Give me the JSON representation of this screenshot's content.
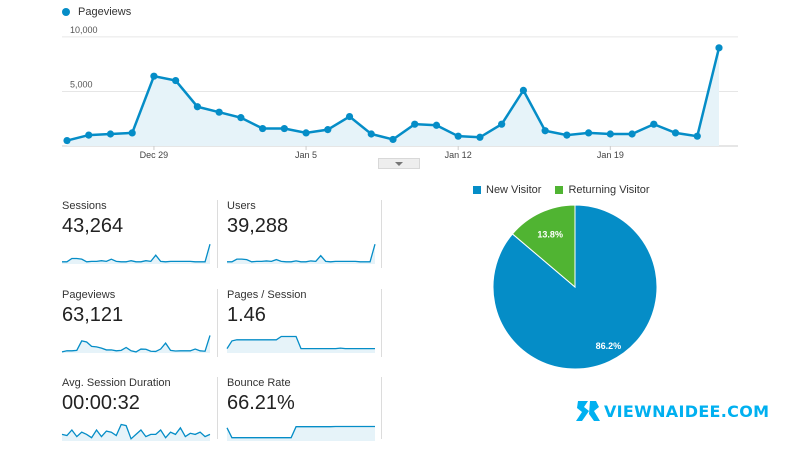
{
  "main_chart": {
    "legend_label": "Pageviews",
    "color": "#058dc7",
    "y_ticks": [
      "10,000",
      "5,000"
    ],
    "x_ticks": [
      "Dec 29",
      "Jan 5",
      "Jan 12",
      "Jan 19"
    ]
  },
  "chart_data": [
    {
      "type": "area",
      "series": [
        {
          "name": "Pageviews",
          "values": [
            500,
            1000,
            1100,
            1200,
            6400,
            6000,
            3600,
            3100,
            2600,
            1600,
            1600,
            1200,
            1500,
            2700,
            1100,
            600,
            2000,
            1900,
            900,
            800,
            2000,
            5100,
            1400,
            1000,
            1200,
            1100,
            1100,
            2000,
            1200,
            900,
            9000
          ]
        }
      ],
      "x": [
        "Dec 25",
        "Dec 26",
        "Dec 27",
        "Dec 28",
        "Dec 29",
        "Dec 30",
        "Dec 31",
        "Jan 1",
        "Jan 2",
        "Jan 3",
        "Jan 4",
        "Jan 5",
        "Jan 6",
        "Jan 7",
        "Jan 8",
        "Jan 9",
        "Jan 10",
        "Jan 11",
        "Jan 12",
        "Jan 13",
        "Jan 14",
        "Jan 15",
        "Jan 16",
        "Jan 17",
        "Jan 18",
        "Jan 19",
        "Jan 20",
        "Jan 21",
        "Jan 22",
        "Jan 23",
        "Jan 24"
      ],
      "ylim": [
        0,
        11000
      ],
      "xlabel": "",
      "ylabel": "",
      "grid": true,
      "legend": "top-left"
    },
    {
      "type": "pie",
      "categories": [
        "New Visitor",
        "Returning Visitor"
      ],
      "values": [
        86.2,
        13.8
      ],
      "colors": [
        "#058dc7",
        "#50b432"
      ],
      "labels": [
        "86.2%",
        "13.8%"
      ],
      "legend": "top"
    }
  ],
  "metrics": [
    {
      "label": "Sessions",
      "value": "43,264",
      "spark": [
        0.1,
        0.1,
        0.25,
        0.25,
        0.22,
        0.1,
        0.12,
        0.12,
        0.15,
        0.12,
        0.22,
        0.12,
        0.1,
        0.1,
        0.15,
        0.1,
        0.1,
        0.15,
        0.12,
        0.4,
        0.12,
        0.1,
        0.12,
        0.12,
        0.12,
        0.12,
        0.12,
        0.1,
        0.1,
        0.1,
        0.9
      ]
    },
    {
      "label": "Users",
      "value": "39,288",
      "spark": [
        0.1,
        0.1,
        0.22,
        0.22,
        0.2,
        0.1,
        0.12,
        0.12,
        0.14,
        0.12,
        0.2,
        0.12,
        0.1,
        0.1,
        0.14,
        0.1,
        0.1,
        0.14,
        0.12,
        0.38,
        0.12,
        0.1,
        0.12,
        0.12,
        0.12,
        0.12,
        0.12,
        0.1,
        0.1,
        0.1,
        0.9
      ]
    },
    {
      "label": "Pageviews",
      "value": "63,121",
      "spark": [
        0.05,
        0.1,
        0.1,
        0.12,
        0.55,
        0.5,
        0.3,
        0.28,
        0.22,
        0.14,
        0.14,
        0.1,
        0.12,
        0.25,
        0.1,
        0.05,
        0.18,
        0.17,
        0.08,
        0.07,
        0.18,
        0.45,
        0.12,
        0.09,
        0.1,
        0.1,
        0.1,
        0.18,
        0.1,
        0.08,
        0.8
      ]
    },
    {
      "label": "Pages / Session",
      "value": "1.46",
      "spark": [
        0.2,
        0.55,
        0.6,
        0.6,
        0.6,
        0.6,
        0.6,
        0.6,
        0.6,
        0.6,
        0.6,
        0.75,
        0.75,
        0.75,
        0.75,
        0.2,
        0.2,
        0.2,
        0.2,
        0.2,
        0.2,
        0.2,
        0.2,
        0.22,
        0.2,
        0.2,
        0.2,
        0.2,
        0.2,
        0.2,
        0.2
      ]
    },
    {
      "label": "Avg. Session Duration",
      "value": "00:00:32",
      "spark": [
        0.3,
        0.25,
        0.5,
        0.2,
        0.4,
        0.3,
        0.15,
        0.5,
        0.2,
        0.45,
        0.4,
        0.25,
        0.75,
        0.7,
        0.1,
        0.3,
        0.5,
        0.2,
        0.3,
        0.3,
        0.5,
        0.15,
        0.4,
        0.3,
        0.6,
        0.2,
        0.35,
        0.3,
        0.4,
        0.2,
        0.3
      ]
    },
    {
      "label": "Bounce Rate",
      "value": "66.21%",
      "spark": [
        0.6,
        0.15,
        0.15,
        0.15,
        0.15,
        0.15,
        0.15,
        0.15,
        0.15,
        0.15,
        0.15,
        0.15,
        0.15,
        0.15,
        0.65,
        0.65,
        0.65,
        0.65,
        0.65,
        0.65,
        0.65,
        0.65,
        0.66,
        0.66,
        0.66,
        0.66,
        0.66,
        0.66,
        0.66,
        0.66,
        0.66
      ]
    }
  ],
  "watermark": {
    "text": "VIEWNAIDEE.COM"
  }
}
